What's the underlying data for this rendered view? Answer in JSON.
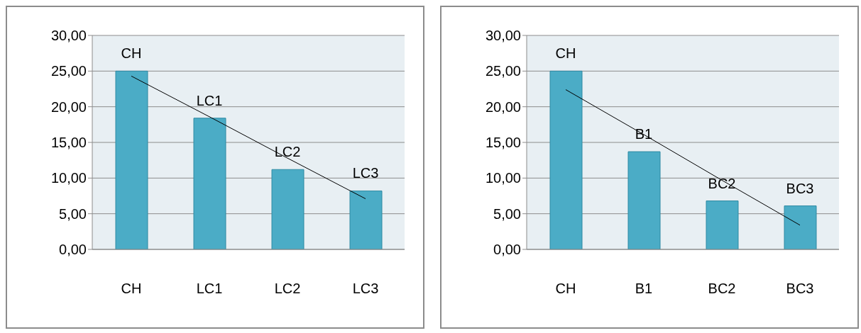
{
  "chart_data": [
    {
      "type": "bar",
      "categories": [
        "CH",
        "LC1",
        "LC2",
        "LC3"
      ],
      "series": [
        {
          "color": "#4bacc6",
          "values": [
            25.0,
            18.4,
            11.2,
            8.2
          ]
        },
        {
          "type": "line",
          "color": "#000000",
          "values": [
            24.3,
            18.6,
            12.8,
            7.1
          ]
        }
      ],
      "ylim": [
        0,
        30
      ],
      "yticks": [
        {
          "value": 0,
          "label": "0,00"
        },
        {
          "value": 5,
          "label": "5,00"
        },
        {
          "value": 10,
          "label": "10,00"
        },
        {
          "value": 15,
          "label": "15,00"
        },
        {
          "value": 20,
          "label": "20,00"
        },
        {
          "value": 25,
          "label": "25,00"
        },
        {
          "value": 30,
          "label": "30,00"
        }
      ],
      "grid": "y",
      "legend": false,
      "marker": "none",
      "line_style": "solid",
      "annotations": [
        {
          "text": "CH",
          "x": "CH",
          "y": 25.0
        },
        {
          "text": "LC1",
          "x": "LC1",
          "y": 18.4
        },
        {
          "text": "LC2",
          "x": "LC2",
          "y": 11.2
        },
        {
          "text": "LC3",
          "x": "LC3",
          "y": 8.2
        }
      ]
    },
    {
      "type": "bar",
      "categories": [
        "CH",
        "B1",
        "BC2",
        "BC3"
      ],
      "series": [
        {
          "color": "#4bacc6",
          "values": [
            25.0,
            13.7,
            6.8,
            6.1
          ]
        },
        {
          "type": "line",
          "color": "#000000",
          "values": [
            22.4,
            16.1,
            9.7,
            3.4
          ]
        }
      ],
      "ylim": [
        0,
        30
      ],
      "yticks": [
        {
          "value": 0,
          "label": "0,00"
        },
        {
          "value": 5,
          "label": "5,00"
        },
        {
          "value": 10,
          "label": "10,00"
        },
        {
          "value": 15,
          "label": "15,00"
        },
        {
          "value": 20,
          "label": "20,00"
        },
        {
          "value": 25,
          "label": "25,00"
        },
        {
          "value": 30,
          "label": "30,00"
        }
      ],
      "grid": "y",
      "legend": false,
      "marker": "none",
      "line_style": "solid",
      "annotations": [
        {
          "text": "CH",
          "x": "CH",
          "y": 25.0
        },
        {
          "text": "B1",
          "x": "B1",
          "y": 13.7
        },
        {
          "text": "BC2",
          "x": "BC2",
          "y": 6.8
        },
        {
          "text": "BC3",
          "x": "BC3",
          "y": 6.1
        }
      ]
    }
  ]
}
